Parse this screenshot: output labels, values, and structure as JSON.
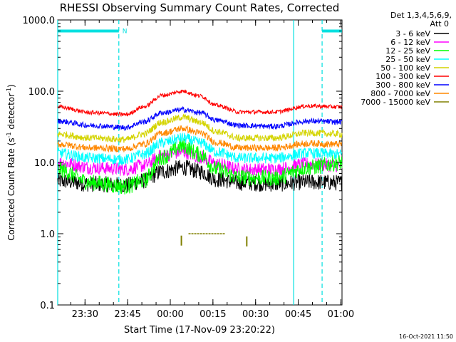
{
  "chart_data": {
    "type": "line",
    "title": "RHESSI Observing Summary Count Rates, Corrected",
    "xlabel": "Start Time (17-Nov-09 23:20:22)",
    "ylabel_main": "Corrected Count Rate (s",
    "ylabel_sup1": "-1",
    "ylabel_mid": " detector",
    "ylabel_sup2": "-1",
    "ylabel_end": ")",
    "yscale": "log",
    "ylim": [
      0.1,
      1000
    ],
    "xlim_minutes": [
      0,
      100
    ],
    "y_ticks": [
      "1000.0",
      "100.0",
      "10.0",
      "1.0",
      "0.1"
    ],
    "x_ticks": [
      {
        "label": "23:30",
        "t": 9.6
      },
      {
        "label": "23:45",
        "t": 24.6
      },
      {
        "label": "00:00",
        "t": 39.6
      },
      {
        "label": "00:15",
        "t": 54.6
      },
      {
        "label": "00:30",
        "t": 69.6
      },
      {
        "label": "00:45",
        "t": 84.6
      },
      {
        "label": "01:00",
        "t": 99.6
      }
    ],
    "legend_header": [
      "Det 1,3,4,5,6,9,",
      "Att 0"
    ],
    "legend_placement": "right",
    "series": [
      {
        "name": "3 - 6 keV",
        "color": "#000000",
        "points": [
          [
            0,
            5.5
          ],
          [
            12,
            5.0
          ],
          [
            24,
            4.8
          ],
          [
            30,
            5.5
          ],
          [
            37,
            7.5
          ],
          [
            44,
            8.5
          ],
          [
            50,
            7.5
          ],
          [
            56,
            5.8
          ],
          [
            64,
            5.2
          ],
          [
            76,
            5.0
          ],
          [
            88,
            5.3
          ],
          [
            100,
            5.2
          ]
        ],
        "noise": 0.12
      },
      {
        "name": "6 - 12 keV",
        "color": "#ff00ff",
        "points": [
          [
            0,
            10
          ],
          [
            12,
            8.5
          ],
          [
            24,
            8.0
          ],
          [
            30,
            9
          ],
          [
            37,
            12.5
          ],
          [
            44,
            14
          ],
          [
            50,
            12
          ],
          [
            56,
            9.5
          ],
          [
            64,
            8.0
          ],
          [
            76,
            8.0
          ],
          [
            88,
            9.5
          ],
          [
            100,
            9.0
          ]
        ],
        "noise": 0.1
      },
      {
        "name": "12 - 25 keV",
        "color": "#00ff00",
        "points": [
          [
            0,
            8
          ],
          [
            12,
            5.2
          ],
          [
            24,
            4.6
          ],
          [
            30,
            5.5
          ],
          [
            37,
            12
          ],
          [
            44,
            17
          ],
          [
            50,
            13
          ],
          [
            56,
            8.0
          ],
          [
            64,
            6.2
          ],
          [
            76,
            6.0
          ],
          [
            88,
            8.5
          ],
          [
            100,
            10
          ]
        ],
        "noise": 0.12
      },
      {
        "name": "25 - 50 keV",
        "color": "#00ffff",
        "points": [
          [
            0,
            13.5
          ],
          [
            12,
            11.5
          ],
          [
            24,
            11
          ],
          [
            30,
            13
          ],
          [
            37,
            19
          ],
          [
            44,
            22
          ],
          [
            50,
            19
          ],
          [
            56,
            14
          ],
          [
            64,
            11.5
          ],
          [
            76,
            11.5
          ],
          [
            88,
            13.5
          ],
          [
            100,
            13
          ]
        ],
        "noise": 0.08
      },
      {
        "name": "50 - 100 keV",
        "color": "#d4d400",
        "points": [
          [
            0,
            25
          ],
          [
            12,
            22
          ],
          [
            24,
            21
          ],
          [
            30,
            25
          ],
          [
            37,
            37
          ],
          [
            44,
            43
          ],
          [
            50,
            37
          ],
          [
            56,
            27
          ],
          [
            64,
            22
          ],
          [
            76,
            22
          ],
          [
            88,
            26
          ],
          [
            100,
            25
          ]
        ],
        "noise": 0.05
      },
      {
        "name": "100 - 300 keV",
        "color": "#ff0000",
        "points": [
          [
            0,
            60
          ],
          [
            12,
            50
          ],
          [
            24,
            47
          ],
          [
            30,
            60
          ],
          [
            37,
            88
          ],
          [
            44,
            100
          ],
          [
            50,
            86
          ],
          [
            56,
            63
          ],
          [
            64,
            51
          ],
          [
            76,
            51
          ],
          [
            88,
            62
          ],
          [
            100,
            60
          ]
        ],
        "noise": 0.03
      },
      {
        "name": "300 - 800 keV",
        "color": "#0000ff",
        "points": [
          [
            0,
            38
          ],
          [
            12,
            33
          ],
          [
            24,
            31
          ],
          [
            30,
            37
          ],
          [
            37,
            50
          ],
          [
            44,
            55
          ],
          [
            50,
            50
          ],
          [
            56,
            39
          ],
          [
            64,
            33
          ],
          [
            76,
            32
          ],
          [
            88,
            38
          ],
          [
            100,
            37
          ]
        ],
        "noise": 0.04
      },
      {
        "name": "800 - 7000 keV",
        "color": "#ff8800",
        "points": [
          [
            0,
            18
          ],
          [
            12,
            16
          ],
          [
            24,
            15.5
          ],
          [
            30,
            18
          ],
          [
            37,
            26
          ],
          [
            44,
            30
          ],
          [
            50,
            26
          ],
          [
            56,
            19
          ],
          [
            64,
            16
          ],
          [
            76,
            16
          ],
          [
            88,
            18.5
          ],
          [
            100,
            18
          ]
        ],
        "noise": 0.05
      },
      {
        "name": "7000 - 15000 keV",
        "color": "#808000",
        "points": [],
        "noise": 0
      }
    ],
    "annotations": {
      "saa_bars_y": 700,
      "saa_bars": [
        [
          0,
          21.5
        ],
        [
          93,
          100
        ]
      ],
      "saa_marker": "N",
      "saa_marker_t": 22,
      "flare_segment": {
        "t0": 46,
        "t1": 59,
        "y": 1.0
      },
      "flare_ticks": [
        {
          "t": 43.5,
          "y": 0.8
        },
        {
          "t": 66.5,
          "y": 0.78
        }
      ],
      "night_lines_t": [
        21.5,
        93
      ],
      "day_lines_t": [
        0,
        83
      ]
    }
  },
  "timestamp": "16-Oct-2021 11:50"
}
